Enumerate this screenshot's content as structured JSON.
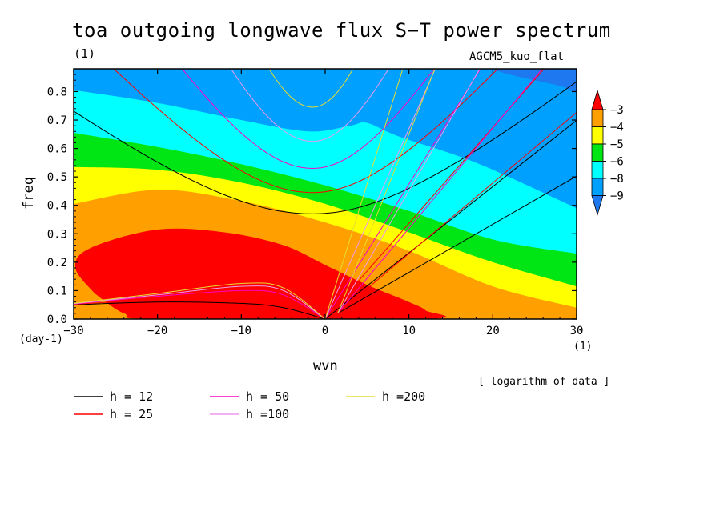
{
  "title": "toa outgoing longwave flux S−T power spectrum",
  "subtitle": "(1)",
  "model_label": "AGCM5_kuo_flat",
  "xlabel": "wvn",
  "ylabel": "freq",
  "x_unit": "(1)",
  "y_unit": "(day-1)",
  "data_note": "[ logarithm of data ]",
  "chart_data": {
    "type": "heatmap",
    "title": "toa outgoing longwave flux S−T power spectrum",
    "subtitle": "(1)",
    "xlabel": "wvn",
    "ylabel": "freq",
    "xlim": [
      -30,
      30
    ],
    "ylim": [
      0,
      0.88
    ],
    "xticks": [
      -30,
      -20,
      -10,
      0,
      10,
      20,
      30
    ],
    "xtick_labels": [
      "−30",
      "−20",
      "−10",
      "0",
      "10",
      "20",
      "30"
    ],
    "yticks": [
      0,
      0.1,
      0.2,
      0.3,
      0.4,
      0.5,
      0.6,
      0.7,
      0.8
    ],
    "ytick_labels": [
      "0.0",
      "0.1",
      "0.2",
      "0.3",
      "0.4",
      "0.5",
      "0.6",
      "0.7",
      "0.8"
    ],
    "colorbar": {
      "levels": [
        -9,
        -8,
        -6,
        -5,
        -4,
        -3
      ],
      "labels": [
        "−9",
        "−8",
        "−6",
        "−5",
        "−4",
        "−3"
      ],
      "colors": [
        "#1e78f0",
        "#00a0ff",
        "#00ffff",
        "#00e614",
        "#ffff00",
        "#ffa000",
        "#ff0000"
      ]
    },
    "contour_boundaries": [
      {
        "level": -3,
        "points": [
          [
            -27.5,
            0.09
          ],
          [
            -29.8,
            0.18
          ],
          [
            -28,
            0.25
          ],
          [
            -20,
            0.315
          ],
          [
            -12,
            0.305
          ],
          [
            -5,
            0.26
          ],
          [
            0,
            0.19
          ],
          [
            5,
            0.12
          ],
          [
            10,
            0.06
          ],
          [
            12,
            0.03
          ],
          [
            12,
            0.0
          ],
          [
            -20,
            0.0
          ],
          [
            -24,
            0.02
          ]
        ]
      },
      {
        "level": -4,
        "points": [
          [
            -30,
            0.405
          ],
          [
            -20,
            0.455
          ],
          [
            -10,
            0.415
          ],
          [
            0,
            0.34
          ],
          [
            10,
            0.24
          ],
          [
            20,
            0.115
          ],
          [
            30,
            0.04
          ]
        ]
      },
      {
        "level": -5,
        "points": [
          [
            -30,
            0.535
          ],
          [
            -20,
            0.525
          ],
          [
            -10,
            0.48
          ],
          [
            0,
            0.405
          ],
          [
            10,
            0.305
          ],
          [
            20,
            0.2
          ],
          [
            30,
            0.115
          ]
        ]
      },
      {
        "level": -6,
        "points": [
          [
            -30,
            0.655
          ],
          [
            -20,
            0.605
          ],
          [
            -10,
            0.545
          ],
          [
            0,
            0.47
          ],
          [
            10,
            0.38
          ],
          [
            20,
            0.28
          ],
          [
            30,
            0.23
          ]
        ]
      },
      {
        "level": -8,
        "points": [
          [
            -30,
            0.805
          ],
          [
            -20,
            0.76
          ],
          [
            -10,
            0.7
          ],
          [
            -2,
            0.66
          ],
          [
            3,
            0.68
          ],
          [
            5,
            0.69
          ],
          [
            9,
            0.64
          ],
          [
            18,
            0.55
          ],
          [
            30,
            0.39
          ]
        ]
      },
      {
        "level": -9,
        "points": [
          [
            20,
            0.88
          ],
          [
            22,
            0.86
          ],
          [
            28,
            0.82
          ],
          [
            30,
            0.8
          ],
          [
            30,
            0.88
          ]
        ]
      }
    ],
    "dispersion_curves": [
      {
        "name": "h = 12",
        "color": "#000000",
        "symmetric": {
          "center": -1.5,
          "min": 0.37,
          "at_minus30": 0.76,
          "right_slope": 0.0236
        },
        "kelvin_slope": 0.0233,
        "antisymmetric_x": [
          -30,
          -20,
          -10,
          -5,
          0
        ],
        "antisymmetric_y": [
          0.05,
          0.06,
          0.055,
          0.04,
          0.0
        ]
      },
      {
        "name": "h = 25",
        "color": "#ff0000",
        "symmetric": {
          "center": -1.5,
          "min": 0.445
        },
        "kelvin_slope": 0.0337,
        "antisymmetric_x": [
          -30,
          -20,
          -10,
          -5,
          0
        ],
        "antisymmetric_y": [
          0.052,
          0.068,
          0.08,
          0.06,
          0.0
        ]
      },
      {
        "name": "h = 50",
        "color": "#ff00c8",
        "symmetric": {
          "center": -1.5,
          "min": 0.53
        },
        "kelvin_slope": 0.0475,
        "antisymmetric_x": [
          -30,
          -20,
          -10,
          -5,
          0
        ],
        "antisymmetric_y": [
          0.053,
          0.08,
          0.1,
          0.085,
          0.0
        ]
      },
      {
        "name": "h =100",
        "color": "#ee99ee",
        "symmetric": {
          "center": -1.5,
          "min": 0.625
        },
        "kelvin_slope": 0.067,
        "antisymmetric_x": [
          -30,
          -20,
          -10,
          -5,
          0
        ],
        "antisymmetric_y": [
          0.054,
          0.085,
          0.115,
          0.1,
          0.0
        ]
      },
      {
        "name": "h =200",
        "color": "#e6dc32",
        "symmetric": {
          "center": -1.5,
          "min": 0.745
        },
        "kelvin_slope": 0.095,
        "antisymmetric_x": [
          -30,
          -20,
          -10,
          -5,
          0
        ],
        "antisymmetric_y": [
          0.055,
          0.09,
          0.125,
          0.11,
          0.0
        ]
      }
    ],
    "legend": {
      "placement": "bottom-left",
      "entries": [
        {
          "label": "h = 12",
          "color": "#000000"
        },
        {
          "label": "h = 25",
          "color": "#ff0000"
        },
        {
          "label": "h = 50",
          "color": "#ff00c8"
        },
        {
          "label": "h =100",
          "color": "#ee99ee"
        },
        {
          "label": "h =200",
          "color": "#e6dc32"
        }
      ]
    }
  }
}
